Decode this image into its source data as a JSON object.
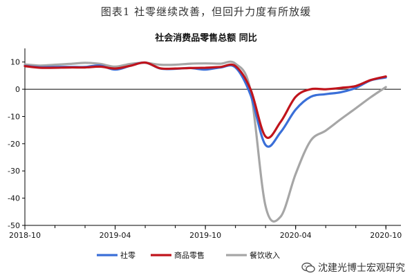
{
  "caption": "图表1 社零继续改善，但回升力度有所放缓",
  "watermark": "沈建光博士宏观研究",
  "chart_data": {
    "type": "line",
    "title": "社会消费品零售总额 同比",
    "xlabel": "",
    "ylabel": "",
    "ylim": [
      -50,
      15
    ],
    "yticks": [
      -50,
      -40,
      -30,
      -20,
      -10,
      0,
      10
    ],
    "xlim": [
      "2018-10",
      "2020-11"
    ],
    "xticks": [
      "2018-10",
      "2019-04",
      "2019-10",
      "2020-04",
      "2020-10"
    ],
    "grid": false,
    "legend_position": "bottom",
    "x": [
      "2018-10",
      "2018-11",
      "2018-12",
      "2019-01",
      "2019-02",
      "2019-03",
      "2019-04",
      "2019-05",
      "2019-06",
      "2019-07",
      "2019-08",
      "2019-09",
      "2019-10",
      "2019-11",
      "2019-12",
      "2020-01",
      "2020-02",
      "2020-03",
      "2020-04",
      "2020-05",
      "2020-06",
      "2020-07",
      "2020-08",
      "2020-09",
      "2020-10"
    ],
    "series": [
      {
        "name": "社零",
        "color": "#3a6fd8",
        "values": [
          8.6,
          8.1,
          8.2,
          8.2,
          8.2,
          8.7,
          7.2,
          8.6,
          9.8,
          7.6,
          7.5,
          7.8,
          7.2,
          8.0,
          8.0,
          -2.0,
          -20.5,
          -15.8,
          -7.5,
          -2.8,
          -1.8,
          -1.1,
          0.5,
          3.3,
          4.3
        ]
      },
      {
        "name": "商品零售",
        "color": "#c0141c",
        "values": [
          8.5,
          7.9,
          7.9,
          8.0,
          8.0,
          8.3,
          7.6,
          8.6,
          9.8,
          7.7,
          7.6,
          7.8,
          7.9,
          8.2,
          8.5,
          0.0,
          -17.4,
          -12.0,
          -2.8,
          0.0,
          0.0,
          0.5,
          1.2,
          3.4,
          4.7
        ]
      },
      {
        "name": "餐饮收入",
        "color": "#a6a6a6",
        "values": [
          9.1,
          8.7,
          9.0,
          9.3,
          9.7,
          9.3,
          8.3,
          9.3,
          9.7,
          9.0,
          9.0,
          9.4,
          9.5,
          9.4,
          9.4,
          -0.5,
          -43.0,
          -46.8,
          -31.1,
          -18.9,
          -15.2,
          -11.0,
          -7.0,
          -2.9,
          0.8
        ]
      }
    ]
  }
}
